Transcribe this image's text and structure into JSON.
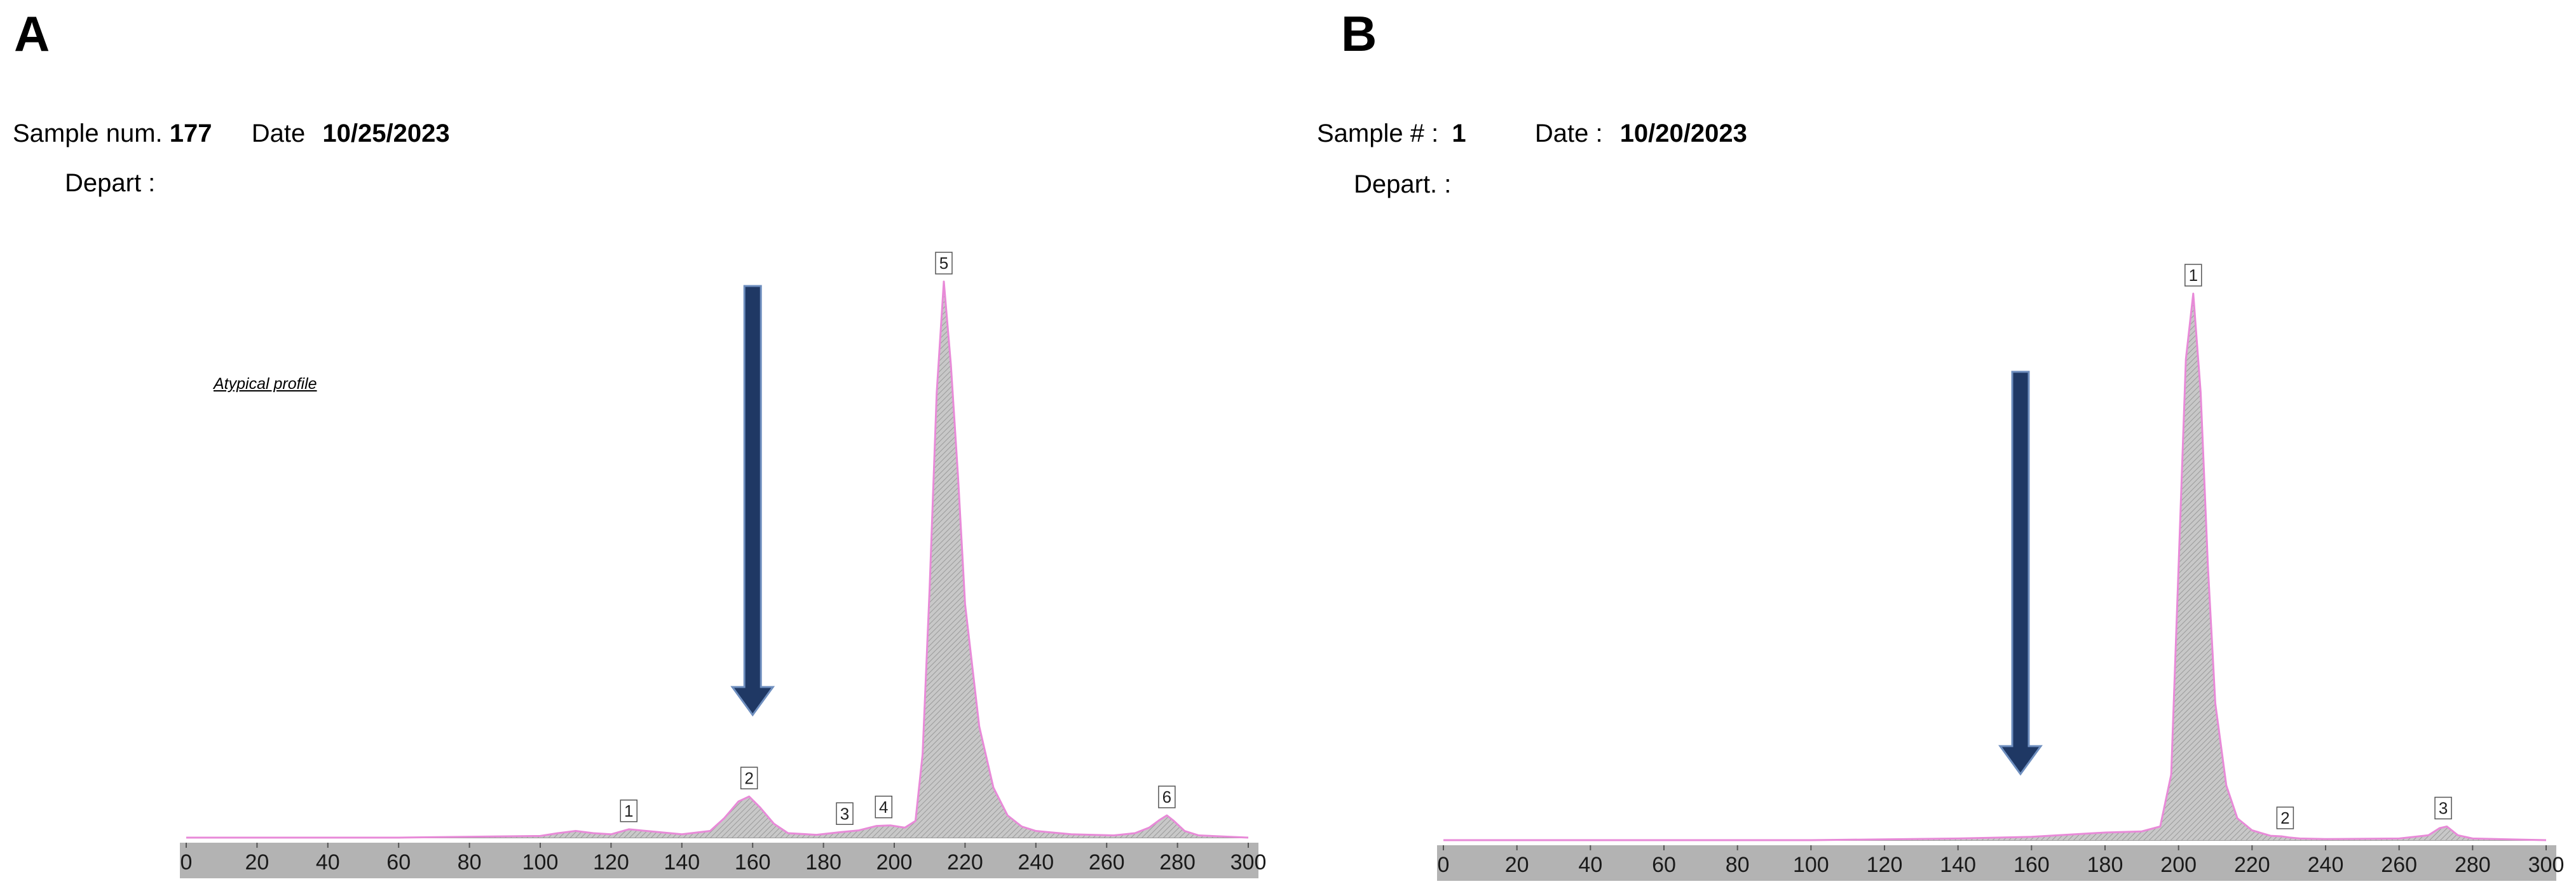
{
  "panel_a": {
    "letter": "A",
    "sample_label": "Sample num.",
    "sample_value": "177",
    "date_label": "Date",
    "date_value": "10/25/2023",
    "depart_label": "Depart :",
    "note": "Atypical profile"
  },
  "panel_b": {
    "letter": "B",
    "sample_label": "Sample # :",
    "sample_value": "1",
    "date_label": "Date :",
    "date_value": "10/20/2023",
    "depart_label": "Depart. :"
  },
  "colors": {
    "trace": "#e88ad8",
    "fill": "#c8c8c8",
    "axis_bar": "#b3b3b3",
    "arrow": "#1f3864"
  },
  "chart_data": [
    {
      "type": "area",
      "xlim": [
        0,
        300
      ],
      "x_ticks": [
        0,
        20,
        40,
        60,
        80,
        100,
        120,
        140,
        160,
        180,
        200,
        220,
        240,
        260,
        280,
        300
      ],
      "grid": false,
      "curve_x": [
        0,
        30,
        60,
        100,
        105,
        110,
        115,
        120,
        125,
        130,
        140,
        148,
        152,
        156,
        159,
        162,
        166,
        170,
        178,
        185,
        190,
        195,
        199,
        203,
        206,
        208,
        210,
        212,
        214,
        216,
        218,
        220,
        224,
        228,
        232,
        236,
        240,
        250,
        262,
        268,
        272,
        275,
        277,
        279,
        282,
        286,
        300
      ],
      "curve_y": [
        0,
        0,
        0,
        0.3,
        0.8,
        1.2,
        0.8,
        0.6,
        1.5,
        1.2,
        0.6,
        1.2,
        3.5,
        6.5,
        7.4,
        5.5,
        2.5,
        0.8,
        0.5,
        1.0,
        1.3,
        2.1,
        2.2,
        1.8,
        3.0,
        15,
        45,
        80,
        100,
        85,
        65,
        42,
        20,
        9,
        4,
        2,
        1.2,
        0.6,
        0.4,
        0.8,
        1.8,
        3.2,
        4.0,
        3.0,
        1.2,
        0.4,
        0
      ],
      "peaks": [
        {
          "label": "1",
          "x": 125,
          "y": 1.5
        },
        {
          "label": "2",
          "x": 159,
          "y": 7.4
        },
        {
          "label": "3",
          "x": 186,
          "y": 1.0
        },
        {
          "label": "4",
          "x": 197,
          "y": 2.2
        },
        {
          "label": "5",
          "x": 214,
          "y": 100
        },
        {
          "label": "6",
          "x": 277,
          "y": 4.0
        }
      ],
      "arrow_x": 160
    },
    {
      "type": "area",
      "xlim": [
        0,
        300
      ],
      "x_ticks": [
        0,
        20,
        40,
        60,
        80,
        100,
        120,
        140,
        160,
        180,
        200,
        220,
        240,
        260,
        280,
        300
      ],
      "grid": false,
      "curve_x": [
        0,
        100,
        140,
        160,
        180,
        190,
        195,
        198,
        200,
        202,
        204,
        206,
        208,
        210,
        213,
        216,
        220,
        225,
        228,
        230,
        233,
        240,
        260,
        268,
        271,
        273,
        276,
        280,
        300
      ],
      "curve_y": [
        0,
        0,
        0.3,
        0.6,
        1.4,
        1.6,
        2.5,
        12,
        50,
        88,
        100,
        82,
        50,
        25,
        10,
        4,
        1.8,
        0.8,
        0.7,
        0.5,
        0.3,
        0.2,
        0.3,
        0.9,
        2.2,
        2.5,
        0.9,
        0.3,
        0
      ],
      "peaks": [
        {
          "label": "1",
          "x": 204,
          "y": 100
        },
        {
          "label": "2",
          "x": 229,
          "y": 0.7
        },
        {
          "label": "3",
          "x": 272,
          "y": 2.5
        }
      ],
      "arrow_x": 157
    }
  ]
}
